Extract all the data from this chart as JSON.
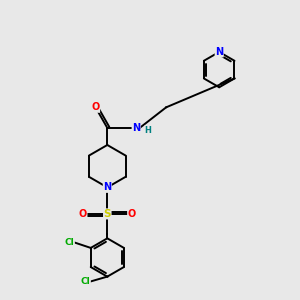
{
  "background_color": "#e8e8e8",
  "bond_color": "#000000",
  "atom_colors": {
    "N": "#0000ff",
    "O": "#ff0000",
    "S": "#cccc00",
    "Cl": "#00aa00",
    "C": "#000000",
    "H": "#008080"
  },
  "figsize": [
    3.0,
    3.0
  ],
  "dpi": 100
}
